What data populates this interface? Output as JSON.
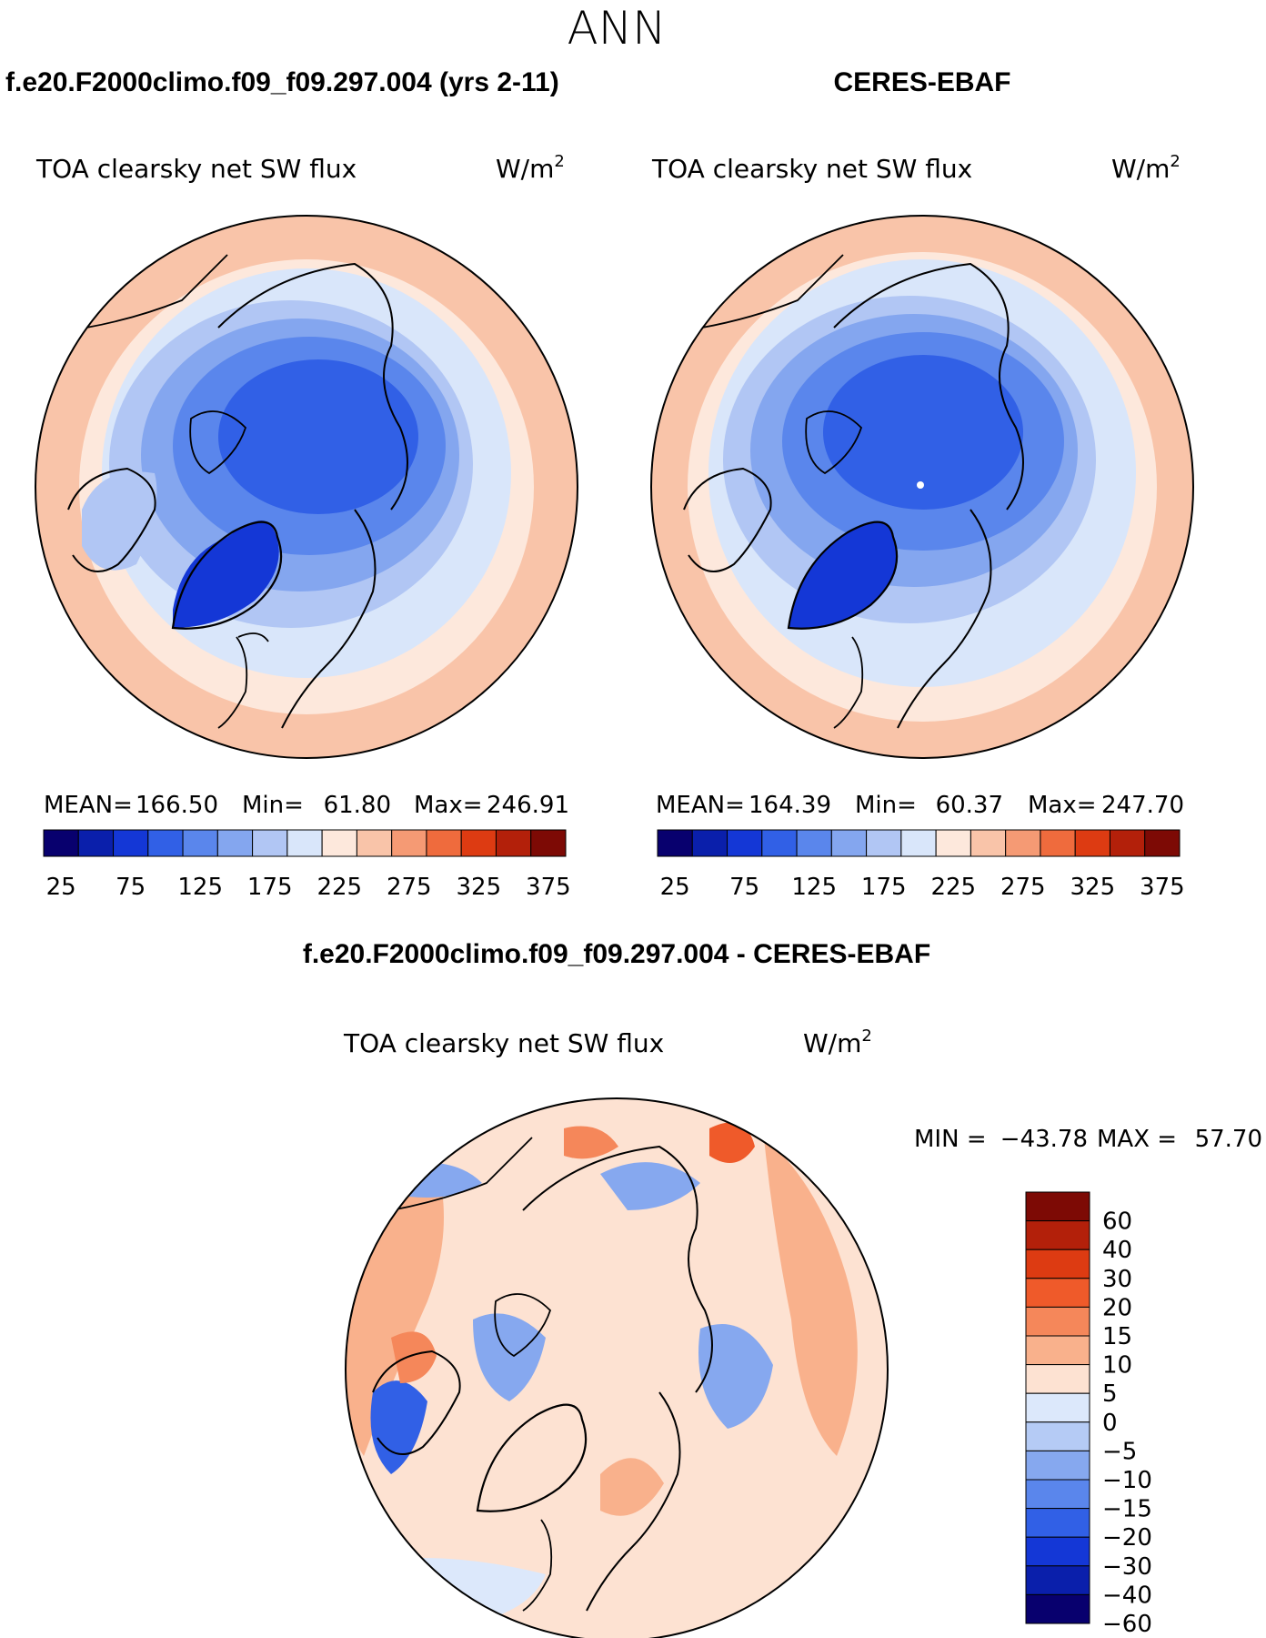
{
  "figure_title": "ANN",
  "panels": [
    {
      "case_label": "f.e20.F2000climo.f09_f09.297.004 (yrs 2-11)",
      "variable": "TOA clearsky net SW flux",
      "units_base": "W/m",
      "units_exp": "2",
      "stats": {
        "mean_label": "MEAN=",
        "mean": "166.50",
        "min_label": "Min=",
        "min": "61.80",
        "max_label": "Max=",
        "max": "246.91"
      }
    },
    {
      "case_label": "CERES-EBAF",
      "variable": "TOA clearsky net SW flux",
      "units_base": "W/m",
      "units_exp": "2",
      "stats": {
        "mean_label": "MEAN=",
        "mean": "164.39",
        "min_label": "Min=",
        "min": "60.37",
        "max_label": "Max=",
        "max": "247.70"
      }
    },
    {
      "case_label": "f.e20.F2000climo.f09_f09.297.004 - CERES-EBAF",
      "variable": "TOA clearsky net SW flux",
      "units_base": "W/m",
      "units_exp": "2",
      "stats": {
        "min_label": "MIN =",
        "min": "−43.78",
        "max_label": "MAX =",
        "max": "57.70"
      }
    }
  ],
  "colorbar_abs": {
    "colors": [
      "#08006e",
      "#0a1fab",
      "#1437d6",
      "#3160e6",
      "#5a86ec",
      "#84a6ef",
      "#b1c6f4",
      "#d9e6fa",
      "#fde8dc",
      "#f9c4a9",
      "#f59a74",
      "#ef6b3d",
      "#dd3b12",
      "#b3200a",
      "#7d0a05"
    ],
    "tick_labels": [
      "25",
      "75",
      "125",
      "175",
      "225",
      "275",
      "325",
      "375"
    ]
  },
  "colorbar_diff": {
    "colors": [
      "#7d0a05",
      "#b3200a",
      "#dd3b12",
      "#ef5a2a",
      "#f5875a",
      "#f9b18c",
      "#fde2d2",
      "#dce8fb",
      "#b5cbf5",
      "#86a8ef",
      "#5a86ec",
      "#3160e6",
      "#1437d6",
      "#0a1fab",
      "#08006e"
    ],
    "tick_labels": [
      "60",
      "40",
      "30",
      "20",
      "15",
      "10",
      "5",
      "0",
      "−5",
      "−10",
      "−15",
      "−20",
      "−30",
      "−40",
      "−60"
    ]
  },
  "map_colors": {
    "ocean_low": "#fde8dc",
    "ocean_mid": "#f9c4a9",
    "diff_bg": "#fde2d2",
    "coast": "#000000"
  }
}
